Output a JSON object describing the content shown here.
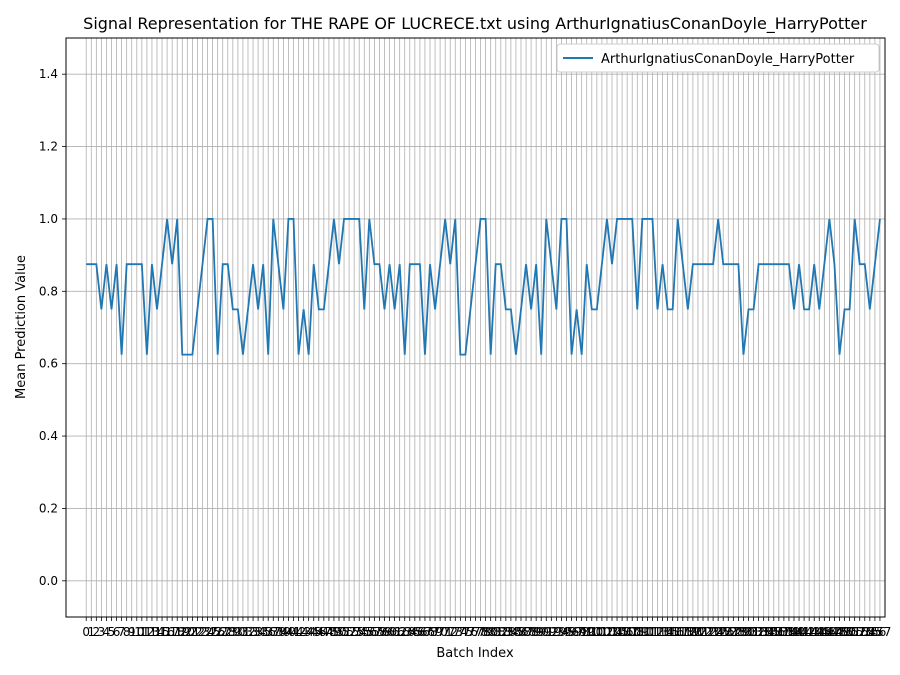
{
  "chart_data": {
    "type": "line",
    "title": "Signal Representation for THE RAPE OF LUCRECE.txt using ArthurIgnatiusConanDoyle_HarryPotter",
    "xlabel": "Batch Index",
    "ylabel": "Mean Prediction Value",
    "ylim": [
      -0.1,
      1.5
    ],
    "yticks": [
      "0.0",
      "0.2",
      "0.4",
      "0.6",
      "0.8",
      "1.0",
      "1.2",
      "1.4"
    ],
    "xlim": [
      -4,
      158
    ],
    "grid": true,
    "legend_position": "top-right",
    "line_color": "#1f77b4",
    "series": [
      {
        "name": "ArthurIgnatiusConanDoyle_HarryPotter",
        "x_start": 0,
        "values": [
          0.875,
          0.875,
          0.875,
          0.75,
          0.875,
          0.75,
          0.875,
          0.625,
          0.875,
          0.875,
          0.875,
          0.875,
          0.625,
          0.875,
          0.75,
          0.875,
          1.0,
          0.875,
          1.0,
          0.625,
          0.625,
          0.625,
          0.75,
          0.875,
          1.0,
          1.0,
          0.625,
          0.875,
          0.875,
          0.75,
          0.75,
          0.625,
          0.75,
          0.875,
          0.75,
          0.875,
          0.625,
          1.0,
          0.875,
          0.75,
          1.0,
          1.0,
          0.625,
          0.75,
          0.625,
          0.875,
          0.75,
          0.75,
          0.875,
          1.0,
          0.875,
          1.0,
          1.0,
          1.0,
          1.0,
          0.75,
          1.0,
          0.875,
          0.875,
          0.75,
          0.875,
          0.75,
          0.875,
          0.625,
          0.875,
          0.875,
          0.875,
          0.625,
          0.875,
          0.75,
          0.875,
          1.0,
          0.875,
          1.0,
          0.625,
          0.625,
          0.75,
          0.875,
          1.0,
          1.0,
          0.625,
          0.875,
          0.875,
          0.75,
          0.75,
          0.625,
          0.75,
          0.875,
          0.75,
          0.875,
          0.625,
          1.0,
          0.875,
          0.75,
          1.0,
          1.0,
          0.625,
          0.75,
          0.625,
          0.875,
          0.75,
          0.75,
          0.875,
          1.0,
          0.875,
          1.0,
          1.0,
          1.0,
          1.0,
          0.75,
          1.0,
          1.0,
          1.0,
          0.75,
          0.875,
          0.75,
          0.75,
          1.0,
          0.875,
          0.75,
          0.875,
          0.875,
          0.875,
          0.875,
          0.875,
          1.0,
          0.875,
          0.875,
          0.875,
          0.875,
          0.625,
          0.75,
          0.75,
          0.875,
          0.875,
          0.875,
          0.875,
          0.875,
          0.875,
          0.875,
          0.75,
          0.875,
          0.75,
          0.75,
          0.875,
          0.75,
          0.875,
          1.0,
          0.875,
          0.625,
          0.75,
          0.75,
          1.0,
          0.875,
          0.875,
          0.75,
          0.875,
          1.0
        ]
      }
    ]
  }
}
